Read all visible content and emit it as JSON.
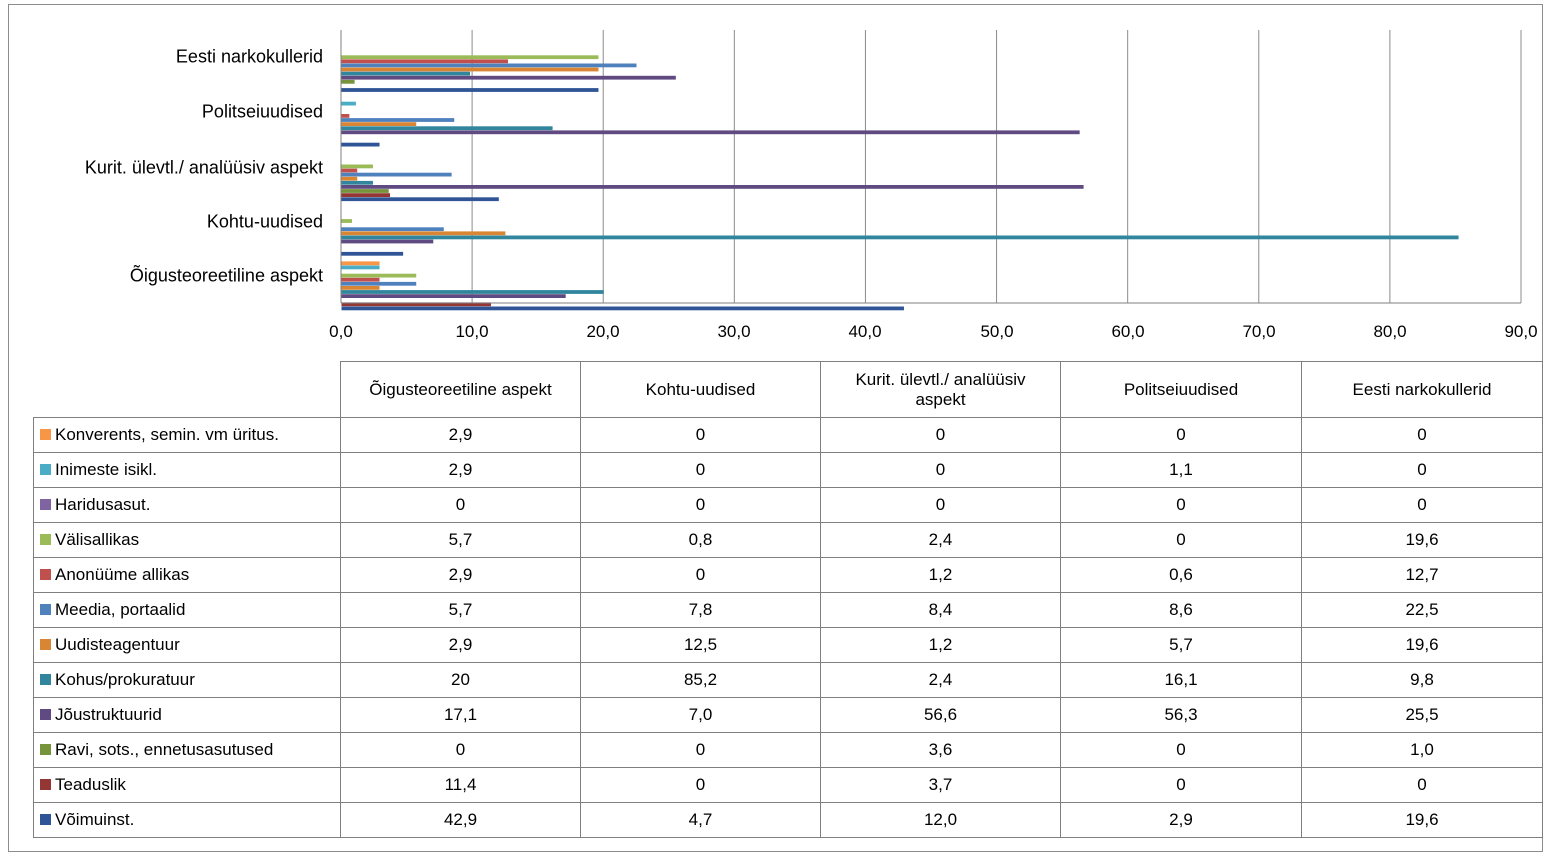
{
  "chart_data": {
    "type": "bar",
    "orientation": "horizontal",
    "categories": [
      "Õigusteoreetiline aspekt",
      "Kohtu-uudised",
      "Kurit. ülevtl./ analüüsiv aspekt",
      "Politseiuudised",
      "Eesti narkokullerid"
    ],
    "categories_display": [
      "Eesti narkokullerid",
      "Politseiuudised",
      "Kurit. ülevtl./ analüüsiv aspekt",
      "Kohtu-uudised",
      "Õigusteoreetiline aspekt"
    ],
    "table_headers": [
      "Õigusteoreetiline aspekt",
      "Kohtu-uudised",
      "Kurit. ülevtl./ analüüsiv\naspekt",
      "Politseiuudised",
      "Eesti narkokullerid"
    ],
    "x_ticks": [
      "0,0",
      "10,0",
      "20,0",
      "30,0",
      "40,0",
      "50,0",
      "60,0",
      "70,0",
      "80,0",
      "90,0"
    ],
    "xlim": [
      0,
      90
    ],
    "grid": true,
    "legend_placement": "data-table-below",
    "series": [
      {
        "name": "Konverents, semin. vm üritus.",
        "color": "#F79646",
        "values": [
          2.9,
          0,
          0,
          0,
          0
        ],
        "labels": [
          "2,9",
          "0",
          "0",
          "0",
          "0"
        ]
      },
      {
        "name": "Inimeste isikl.",
        "color": "#4BACC6",
        "values": [
          2.9,
          0,
          0,
          1.1,
          0
        ],
        "labels": [
          "2,9",
          "0",
          "0",
          "1,1",
          "0"
        ]
      },
      {
        "name": "Haridusasut.",
        "color": "#8064A2",
        "values": [
          0,
          0,
          0,
          0,
          0
        ],
        "labels": [
          "0",
          "0",
          "0",
          "0",
          "0"
        ]
      },
      {
        "name": "Välisallikas",
        "color": "#9BBB59",
        "values": [
          5.7,
          0.8,
          2.4,
          0,
          19.6
        ],
        "labels": [
          "5,7",
          "0,8",
          "2,4",
          "0",
          "19,6"
        ]
      },
      {
        "name": "Anonüüme allikas",
        "color": "#C0504D",
        "values": [
          2.9,
          0,
          1.2,
          0.6,
          12.7
        ],
        "labels": [
          "2,9",
          "0",
          "1,2",
          "0,6",
          "12,7"
        ]
      },
      {
        "name": "Meedia, portaalid",
        "color": "#4F81BD",
        "values": [
          5.7,
          7.8,
          8.4,
          8.6,
          22.5
        ],
        "labels": [
          "5,7",
          "7,8",
          "8,4",
          "8,6",
          "22,5"
        ]
      },
      {
        "name": "Uudisteagentuur",
        "color": "#D98634",
        "values": [
          2.9,
          12.5,
          1.2,
          5.7,
          19.6
        ],
        "labels": [
          "2,9",
          "12,5",
          "1,2",
          "5,7",
          "19,6"
        ]
      },
      {
        "name": "Kohus/prokuratuur",
        "color": "#31859C",
        "values": [
          20,
          85.2,
          2.4,
          16.1,
          9.8
        ],
        "labels": [
          "20",
          "85,2",
          "2,4",
          "16,1",
          "9,8"
        ]
      },
      {
        "name": "Jõustruktuurid",
        "color": "#5F4A82",
        "values": [
          17.1,
          7.0,
          56.6,
          56.3,
          25.5
        ],
        "labels": [
          "17,1",
          "7,0",
          "56,6",
          "56,3",
          "25,5"
        ]
      },
      {
        "name": "Ravi, sots., ennetusasutused",
        "color": "#77933C",
        "values": [
          0,
          0,
          3.6,
          0,
          1.0
        ],
        "labels": [
          "0",
          "0",
          "3,6",
          "0",
          "1,0"
        ]
      },
      {
        "name": "Teaduslik",
        "color": "#943634",
        "values": [
          11.4,
          0,
          3.7,
          0,
          0
        ],
        "labels": [
          "11,4",
          "0",
          "3,7",
          "0",
          "0"
        ]
      },
      {
        "name": "Võimuinst.",
        "color": "#2F5597",
        "values": [
          42.9,
          4.7,
          12.0,
          2.9,
          19.6
        ],
        "labels": [
          "42,9",
          "4,7",
          "12,0",
          "2,9",
          "19,6"
        ]
      }
    ]
  }
}
